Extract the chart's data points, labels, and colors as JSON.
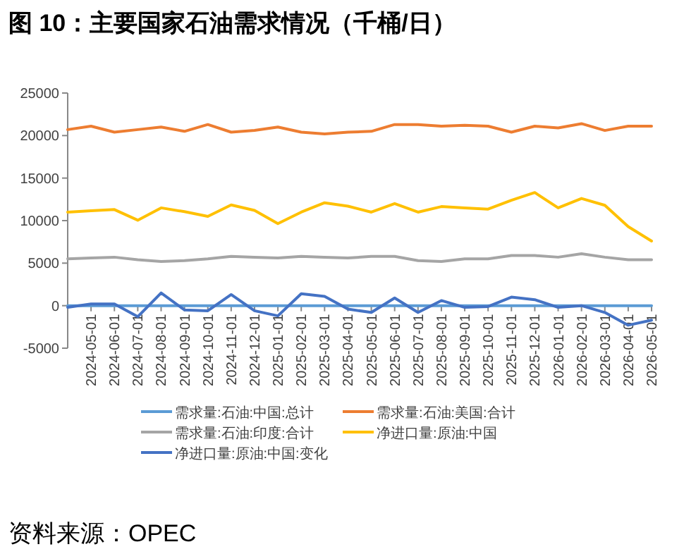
{
  "chart_data": {
    "type": "line",
    "title": "图 10：主要国家石油需求情况（千桶/日）",
    "categories": [
      null,
      "2024-05-01",
      "2024-06-01",
      "2024-07-01",
      "2024-08-01",
      "2024-09-01",
      "2024-10-01",
      "2024-11-01",
      "2024-12-01",
      "2025-01-01",
      "2025-02-01",
      "2025-03-01",
      "2025-04-01",
      "2025-05-01",
      "2025-06-01",
      "2025-07-01",
      "2025-08-01",
      "2025-09-01",
      "2025-10-01",
      "2025-11-01",
      "2025-12-01",
      "2026-01-01",
      "2026-02-01",
      "2026-03-01",
      "2026-04-01",
      "2026-05-01"
    ],
    "series": [
      {
        "name": "需求量:石油:中国:总计",
        "color": "#5b9bd5",
        "values": [
          0,
          0,
          0,
          0,
          0,
          0,
          0,
          0,
          0,
          0,
          0,
          0,
          0,
          0,
          0,
          0,
          0,
          0,
          0,
          0,
          0,
          0,
          0,
          0,
          0,
          0
        ]
      },
      {
        "name": "需求量:石油:美国:合计",
        "color": "#ed7d31",
        "values": [
          20700,
          21100,
          20400,
          20700,
          21000,
          20500,
          21300,
          20400,
          20600,
          21000,
          20400,
          20200,
          20400,
          20500,
          21300,
          21300,
          21100,
          21200,
          21100,
          20400,
          21100,
          20900,
          21400,
          20600,
          21100,
          21100
        ]
      },
      {
        "name": "需求量:石油:印度:合计",
        "color": "#a5a5a5",
        "values": [
          5500,
          5600,
          5700,
          5400,
          5200,
          5300,
          5500,
          5800,
          5700,
          5600,
          5800,
          5700,
          5600,
          5800,
          5800,
          5300,
          5200,
          5500,
          5500,
          5900,
          5900,
          5700,
          6100,
          5700,
          5400,
          5400
        ]
      },
      {
        "name": "净进口量:原油:中国",
        "color": "#ffc000",
        "values": [
          11000,
          11150,
          11300,
          10050,
          11500,
          11050,
          10500,
          11850,
          11200,
          9650,
          11000,
          12100,
          11700,
          11000,
          12000,
          11000,
          11650,
          11500,
          11350,
          12400,
          13300,
          11500,
          12600,
          11800,
          9300,
          7600
        ]
      },
      {
        "name": "净进口量:原油:中国:变化",
        "color": "#4472c4",
        "values": [
          -200,
          200,
          200,
          -1300,
          1500,
          -500,
          -600,
          1300,
          -600,
          -1200,
          1400,
          1100,
          -400,
          -800,
          900,
          -800,
          600,
          -200,
          -100,
          1000,
          700,
          -200,
          0,
          -800,
          -2300,
          -1700
        ]
      }
    ],
    "ylim": [
      -5000,
      25000
    ],
    "yticks": [
      -5000,
      0,
      5000,
      10000,
      15000,
      20000,
      25000
    ],
    "grid": false,
    "legend": "bottom",
    "marker": "none",
    "line_style": "solid",
    "annotations": [
      "资料来源：OPEC"
    ]
  }
}
